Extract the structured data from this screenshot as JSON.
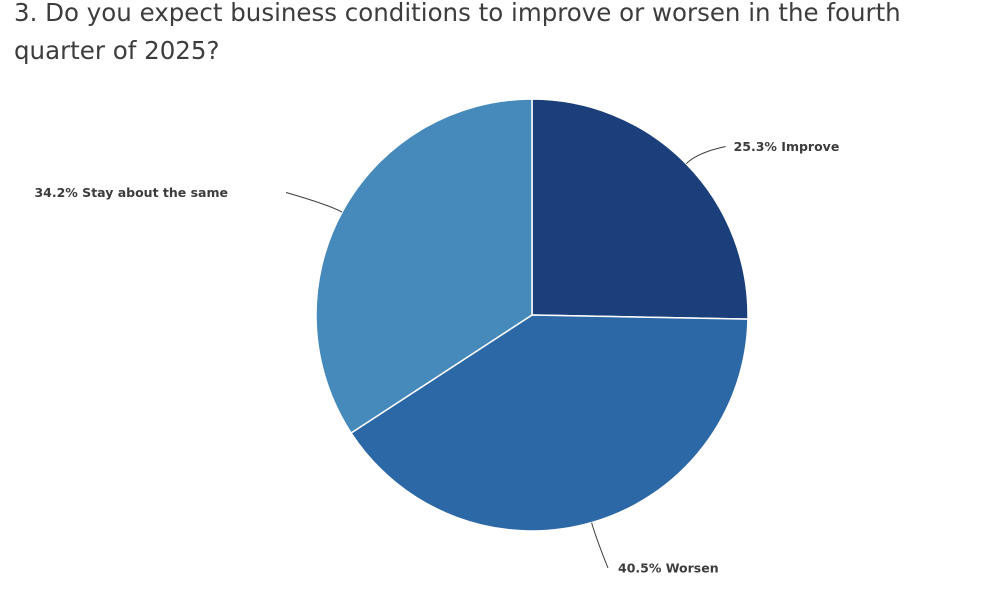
{
  "chart_data": {
    "type": "pie",
    "title": "3. Do you expect business conditions to improve or worsen in the fourth quarter of 2025?",
    "slices": [
      {
        "label": "Improve",
        "value": 25.3,
        "display": "25.3% Improve",
        "color": "#1a3f7a"
      },
      {
        "label": "Worsen",
        "value": 40.5,
        "display": "40.5% Worsen",
        "color": "#2d68a6"
      },
      {
        "label": "Stay about the same",
        "value": 34.2,
        "display": "34.2% Stay about the same",
        "color": "#4689bb"
      }
    ],
    "start": "12 o'clock",
    "direction": "clockwise",
    "labels": "outside with leader lines"
  }
}
